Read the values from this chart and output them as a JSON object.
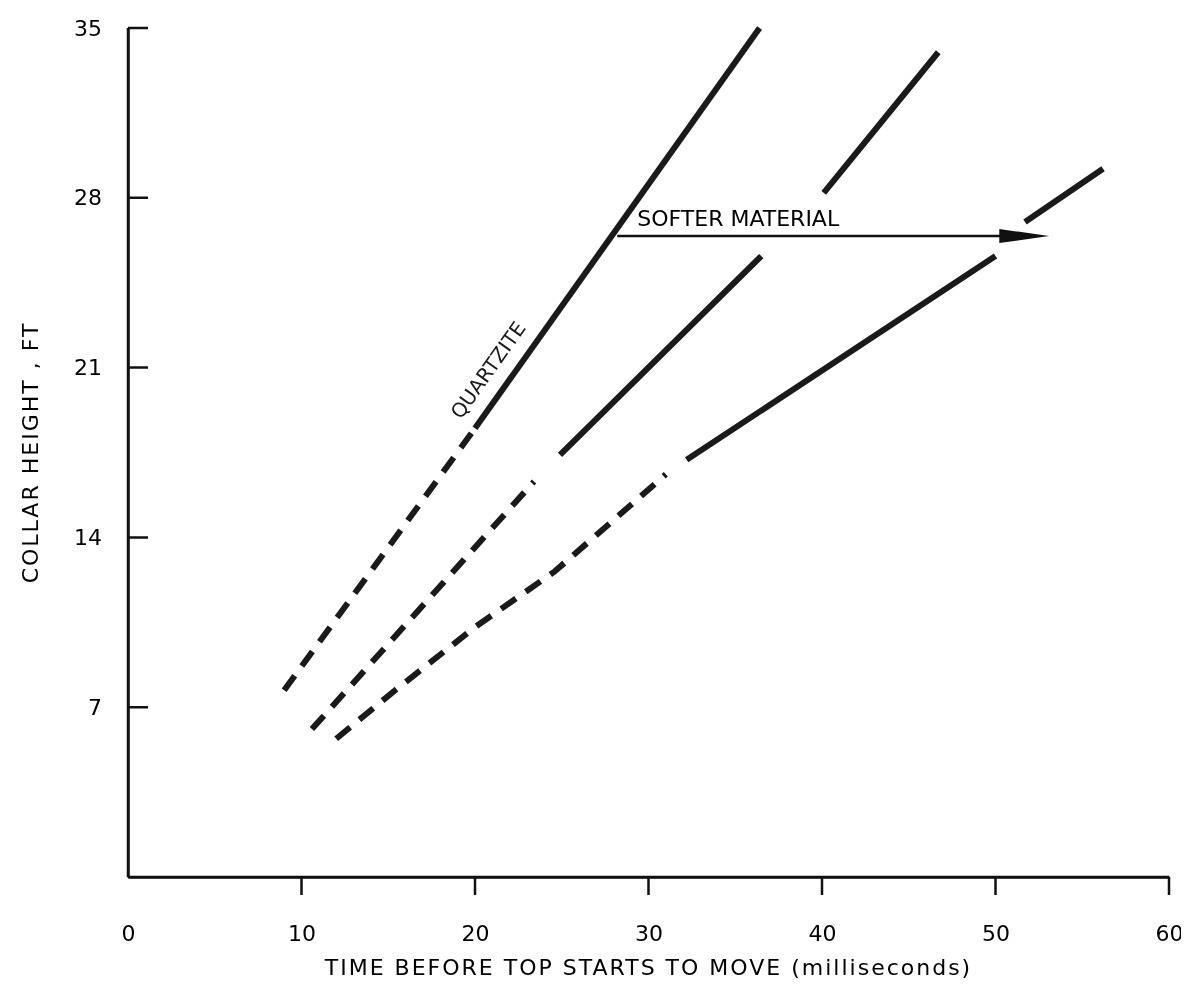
{
  "chart_data": {
    "type": "line",
    "xlabel": "TIME BEFORE TOP STARTS TO MOVE (milliseconds)",
    "ylabel": "COLLAR HEIGHT , FT",
    "xlim": [
      0,
      60
    ],
    "xticks": [
      0,
      10,
      20,
      30,
      40,
      50,
      60
    ],
    "ylim": [
      0,
      35
    ],
    "yticks": [
      {
        "value": 0,
        "label": null
      },
      7,
      14,
      21,
      28,
      35
    ],
    "grid": false,
    "marker": "none",
    "annotations": [
      "SOFTER MATERIAL"
    ],
    "series": [
      {
        "color": "#1a1a1a",
        "line_style": "dashed",
        "x": [
          9,
          20
        ],
        "values": [
          7.7,
          18.5
        ]
      },
      {
        "name": "QUARTZITE",
        "color": "#1a1a1a",
        "line_style": "solid",
        "x": [
          20,
          36.4
        ],
        "values": [
          18.5,
          35
        ]
      },
      {
        "color": "#1a1a1a",
        "line_style": "dashed",
        "x": [
          10.6,
          23.4
        ],
        "values": [
          6.1,
          16.3
        ]
      },
      {
        "color": "#1a1a1a",
        "line_style": "solid",
        "x": [
          24.9,
          36.5,
          38.3,
          40.1,
          46.7
        ],
        "values": [
          17.4,
          25.6,
          null,
          28.2,
          34
        ]
      },
      {
        "color": "#1a1a1a",
        "line_style": "dashed",
        "x": [
          12,
          15.4,
          20,
          24.6,
          31
        ],
        "values": [
          5.7,
          7.7,
          10.3,
          12.6,
          16.6
        ]
      },
      {
        "color": "#1a1a1a",
        "line_style": "solid",
        "x": [
          32.2,
          50,
          50.9,
          51.7,
          56.2
        ],
        "values": [
          17.2,
          25.6,
          null,
          27,
          29.2
        ]
      }
    ]
  }
}
